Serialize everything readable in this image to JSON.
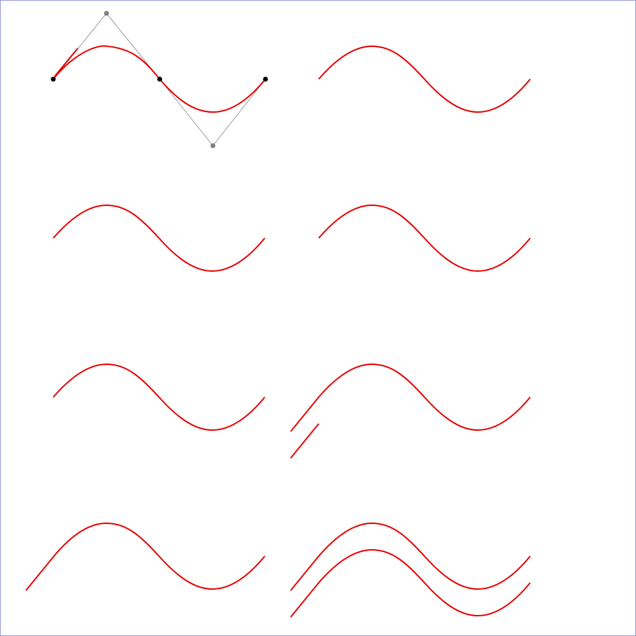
{
  "colors": {
    "curve": "#e60000",
    "control_line": "#999999",
    "anchor_point": "#000000",
    "control_point": "#808080",
    "border": "#9999dd",
    "background": "#ffffff"
  },
  "panels": [
    {
      "id": "top-left",
      "shapes": [
        "sine-wave"
      ],
      "shows_control_points": true,
      "extras": [
        "start-tangent-line"
      ]
    },
    {
      "id": "top-right",
      "shapes": [
        "sine-wave"
      ]
    },
    {
      "id": "row2-left",
      "shapes": [
        "sine-wave"
      ]
    },
    {
      "id": "row2-right",
      "shapes": [
        "sine-wave"
      ]
    },
    {
      "id": "row3-left",
      "shapes": [
        "sine-wave"
      ]
    },
    {
      "id": "row3-right",
      "shapes": [
        "sine-wave-with-lead-segment",
        "detached-segment"
      ]
    },
    {
      "id": "row4-left",
      "shapes": [
        "sine-wave-with-lead-segment"
      ]
    },
    {
      "id": "row4-right",
      "shapes": [
        "sine-wave-with-lead-segment",
        "sine-wave-with-lead-segment"
      ]
    }
  ]
}
